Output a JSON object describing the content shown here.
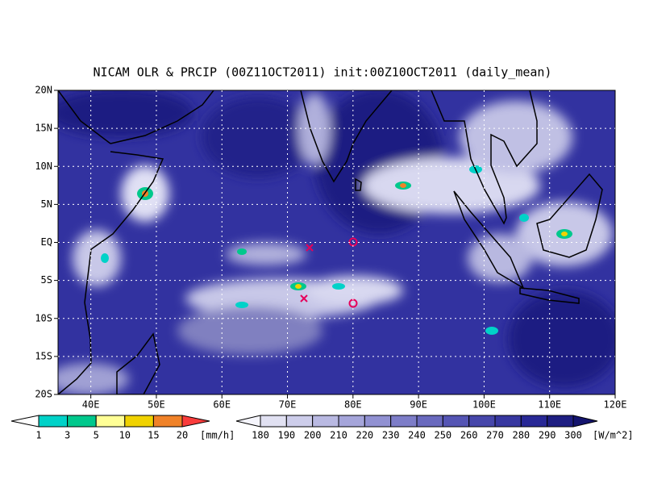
{
  "title": "NICAM OLR & PRCIP (00Z11OCT2011) init:00Z10OCT2011 (daily_mean)",
  "map": {
    "xlim": [
      35,
      120
    ],
    "ylim": [
      -20,
      20
    ],
    "xticks": [
      {
        "value": 40,
        "label": "40E"
      },
      {
        "value": 50,
        "label": "50E"
      },
      {
        "value": 60,
        "label": "60E"
      },
      {
        "value": 70,
        "label": "70E"
      },
      {
        "value": 80,
        "label": "80E"
      },
      {
        "value": 90,
        "label": "90E"
      },
      {
        "value": 100,
        "label": "100E"
      },
      {
        "value": 110,
        "label": "110E"
      },
      {
        "value": 120,
        "label": "120E"
      }
    ],
    "yticks": [
      {
        "value": 20,
        "label": "20N"
      },
      {
        "value": 15,
        "label": "15N"
      },
      {
        "value": 10,
        "label": "10N"
      },
      {
        "value": 5,
        "label": "5N"
      },
      {
        "value": 0,
        "label": "EQ"
      },
      {
        "value": -5,
        "label": "5S"
      },
      {
        "value": -10,
        "label": "10S"
      },
      {
        "value": -15,
        "label": "15S"
      },
      {
        "value": -20,
        "label": "20S"
      }
    ],
    "grid": true
  },
  "precip_colorbar": {
    "levels": [
      1,
      3,
      5,
      10,
      15,
      20
    ],
    "colors": [
      "#ffffff",
      "#00d2c8",
      "#00c88c",
      "#ffff96",
      "#f0d200",
      "#f08228",
      "#fa3c3c"
    ],
    "unit": "[mm/h]"
  },
  "olr_colorbar": {
    "levels": [
      180,
      190,
      200,
      210,
      220,
      230,
      240,
      250,
      260,
      270,
      280,
      290,
      300
    ],
    "colors": [
      "#f5f5fc",
      "#e1e1f2",
      "#cdcdea",
      "#b9b9e2",
      "#a5a5da",
      "#9191d2",
      "#7d7dc8",
      "#6969be",
      "#5555b4",
      "#4646aa",
      "#3737a0",
      "#282896",
      "#1e1e82",
      "#14146e"
    ],
    "unit": "[W/m^2]"
  }
}
